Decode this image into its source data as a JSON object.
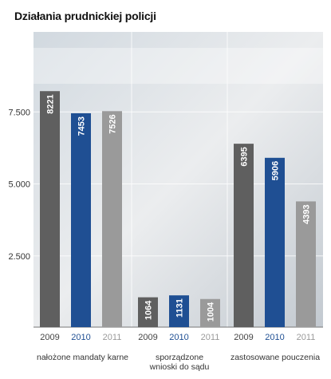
{
  "chart_data": {
    "type": "bar",
    "title": "Działania prudnickiej policji",
    "ylim": [
      0,
      9000
    ],
    "yticks": [
      {
        "value": 2500,
        "label": "2.500"
      },
      {
        "value": 5000,
        "label": "5.000"
      },
      {
        "value": 7500,
        "label": "7.500"
      }
    ],
    "grid": true,
    "groups": [
      {
        "label": "nałożone mandaty karne",
        "lines": [
          "nałożone mandaty karne"
        ]
      },
      {
        "label": "sporządzone wnioski do sądu",
        "lines": [
          "sporządzone",
          "wnioski do sądu"
        ]
      },
      {
        "label": "zastosowane pouczenia",
        "lines": [
          "zastosowane pouczenia"
        ]
      }
    ],
    "years": [
      "2009",
      "2010",
      "2011"
    ],
    "series": [
      {
        "name": "2009",
        "color": "#5f5f5f",
        "values": [
          8221,
          1064,
          6395
        ],
        "labels": [
          "8221",
          "1064",
          "6395"
        ]
      },
      {
        "name": "2010",
        "color": "#1f4f93",
        "values": [
          7453,
          1131,
          5906
        ],
        "labels": [
          "7453",
          "1131",
          "5906"
        ]
      },
      {
        "name": "2011",
        "color": "#9a9a9a",
        "values": [
          7526,
          1004,
          4393
        ],
        "labels": [
          "7526",
          "1004",
          "4393"
        ]
      }
    ],
    "year_label_colors": [
      "#444444",
      "#1f4f93",
      "#9a9a9a"
    ],
    "background_colors": [
      "#c9d2da",
      "#e8eaec",
      "#b8c0c8"
    ]
  }
}
